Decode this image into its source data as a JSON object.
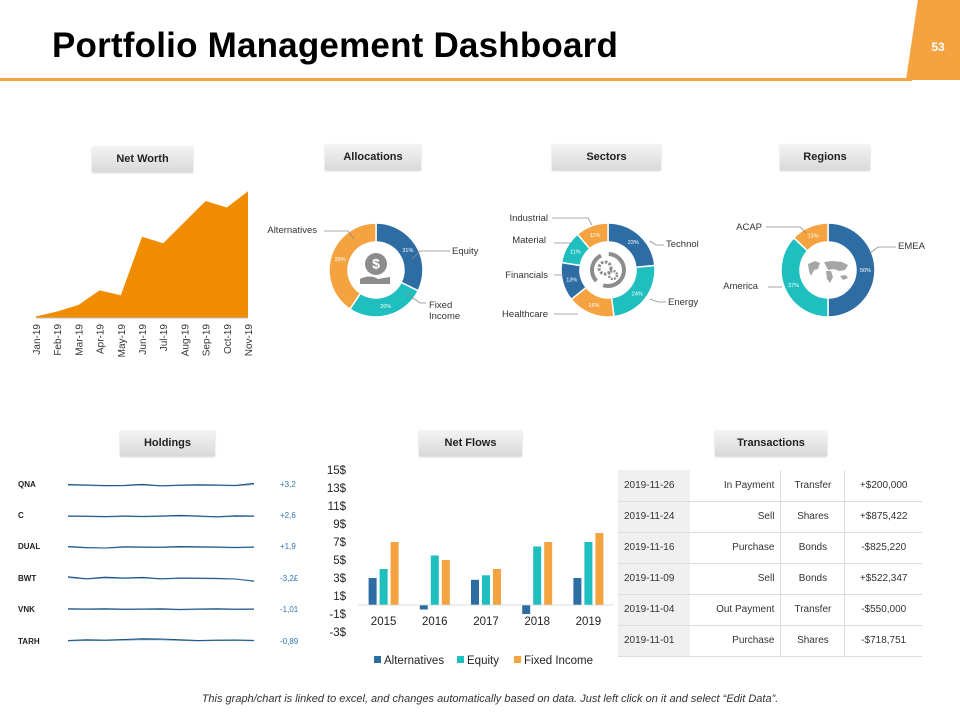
{
  "page": {
    "title": "Portfolio Management Dashboard",
    "page_number": "53",
    "footnote": "This graph/chart is linked to excel, and changes automatically based on data. Just left click on it and select “Edit Data”.",
    "accent_color": "#f4a340"
  },
  "sections": {
    "net_worth": "Net Worth",
    "allocations": "Allocations",
    "sectors": "Sectors",
    "regions": "Regions",
    "holdings": "Holdings",
    "net_flows": "Net Flows",
    "transactions": "Transactions"
  },
  "chart_data": [
    {
      "id": "net_worth",
      "type": "area",
      "title": "Net Worth",
      "categories": [
        "Jan-19",
        "Feb-19",
        "Mar-19",
        "Apr-19",
        "May-19",
        "Jun-19",
        "Jul-19",
        "Aug-19",
        "Sep-19",
        "Oct-19",
        "Nov-19"
      ],
      "values": [
        1,
        4,
        8,
        17,
        14,
        50,
        46,
        59,
        72,
        68,
        78
      ],
      "ylim": [
        0,
        80
      ],
      "color": "#ef8c00"
    },
    {
      "id": "allocations",
      "type": "pie",
      "title": "Allocations",
      "labels": [
        "Equity",
        "Fixed Income",
        "Alternatives"
      ],
      "values": [
        31,
        26,
        39
      ],
      "value_labels": [
        "31%",
        "26%",
        "39%"
      ],
      "colors": [
        "#2e6ca4",
        "#1fbfbf",
        "#f4a340"
      ],
      "center_icon": "money-hand-icon"
    },
    {
      "id": "sectors",
      "type": "pie",
      "title": "Sectors",
      "labels": [
        "Technol",
        "Energy",
        "Healthcare",
        "Financials",
        "Material",
        "Industrial"
      ],
      "values": [
        23,
        24,
        16,
        13,
        11,
        11
      ],
      "value_labels": [
        "23%",
        "24%",
        "16%",
        "13%",
        "11%",
        "11%"
      ],
      "colors": [
        "#2e6ca4",
        "#1fbfbf",
        "#f4a340",
        "#2e6ca4",
        "#1fbfbf",
        "#f4a340"
      ],
      "center_icon": "gears-icon"
    },
    {
      "id": "regions",
      "type": "pie",
      "title": "Regions",
      "labels": [
        "EMEA",
        "America",
        "ACAP"
      ],
      "values": [
        50,
        37,
        13
      ],
      "value_labels": [
        "50%",
        "37%",
        "13%"
      ],
      "colors": [
        "#2e6ca4",
        "#1fbfbf",
        "#f4a340"
      ],
      "center_icon": "world-map-icon"
    },
    {
      "id": "holdings",
      "type": "line",
      "title": "Holdings",
      "rows": [
        {
          "name": "QNA",
          "change": "+3,2",
          "values": [
            0.2,
            0.0,
            -0.3,
            -0.2,
            0.3,
            -0.4,
            -0.1,
            0.1,
            0.0,
            -0.2,
            0.8
          ]
        },
        {
          "name": "C",
          "change": "+2,6",
          "values": [
            0.0,
            -0.1,
            -0.3,
            0.0,
            -0.2,
            0.0,
            0.3,
            0.0,
            -0.4,
            0.1,
            0.0
          ]
        },
        {
          "name": "DUAL",
          "change": "+1,9",
          "values": [
            0.2,
            -0.3,
            -0.5,
            0.1,
            0.0,
            -0.1,
            0.2,
            0.1,
            0.0,
            -0.2,
            0.0
          ]
        },
        {
          "name": "BWT",
          "change": "-3,2£",
          "values": [
            0.6,
            -0.4,
            0.4,
            0.0,
            0.3,
            -0.4,
            0.0,
            -0.1,
            -0.2,
            -0.5,
            -1.6
          ]
        },
        {
          "name": "VNK",
          "change": "-1,01",
          "values": [
            0.1,
            0.0,
            0.1,
            -0.1,
            0.0,
            0.1,
            -0.2,
            0.0,
            0.1,
            -0.1,
            0.0
          ]
        },
        {
          "name": "TARH",
          "change": "-0,89",
          "values": [
            -0.3,
            0.1,
            -0.1,
            0.2,
            0.6,
            0.5,
            0.1,
            -0.3,
            -0.1,
            0.0,
            -0.2
          ]
        }
      ]
    },
    {
      "id": "net_flows",
      "type": "bar",
      "title": "Net Flows",
      "categories": [
        "2015",
        "2016",
        "2017",
        "2018",
        "2019"
      ],
      "series": [
        {
          "name": "Alternatives",
          "values": [
            3,
            -0.5,
            2.8,
            -1,
            3
          ]
        },
        {
          "name": "Equity",
          "values": [
            4,
            5.5,
            3.3,
            6.5,
            7
          ]
        },
        {
          "name": "Fixed Income",
          "values": [
            7,
            5,
            4,
            7,
            8
          ]
        }
      ],
      "colors": [
        "#2e6ca4",
        "#1fbfbf",
        "#f4a340"
      ],
      "yticks": [
        "15$",
        "13$",
        "11$",
        "9$",
        "7$",
        "5$",
        "3$",
        "1$",
        "-1$",
        "-3$"
      ],
      "ylim": [
        -3,
        15
      ]
    }
  ],
  "transactions": {
    "rows": [
      {
        "date": "2019-11-26",
        "type": "In Payment",
        "class": "Transfer",
        "amount": "+$200,000"
      },
      {
        "date": "2019-11-24",
        "type": "Sell",
        "class": "Shares",
        "amount": "+$875,422"
      },
      {
        "date": "2019-11-16",
        "type": "Purchase",
        "class": "Bonds",
        "amount": "-$825,220"
      },
      {
        "date": "2019-11-09",
        "type": "Sell",
        "class": "Bonds",
        "amount": "+$522,347"
      },
      {
        "date": "2019-11-04",
        "type": "Out Payment",
        "class": "Transfer",
        "amount": "-$550,000"
      },
      {
        "date": "2019-11-01",
        "type": "Purchase",
        "class": "Shares",
        "amount": "-$718,751"
      }
    ]
  }
}
